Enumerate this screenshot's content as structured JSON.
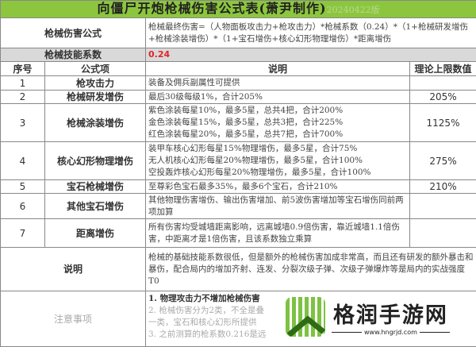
{
  "title": "向僵尸开炮枪械伤害公式表(萧尹制作)",
  "version": "20240422版",
  "formula": {
    "label": "枪械伤害公式",
    "text": "枪械最终伤害=（人物面板攻击力+枪攻击力）*枪械系数（0.24）*（1+枪械研发增伤+枪械涂装增伤）*（1+宝石增伤+核心幻形物理增伤）*距离增伤"
  },
  "coefficient": {
    "label": "枪械技能系数",
    "value": "0.24"
  },
  "headers": [
    "序号",
    "公式项",
    "说明",
    "理论上限数值"
  ],
  "rows": [
    {
      "no": "1",
      "item": "枪攻击力",
      "desc": [
        "装备及佣兵副属性可提供"
      ],
      "max": ""
    },
    {
      "no": "2",
      "item": "枪械研发增伤",
      "desc": [
        "最后30级每级1%，合计205%"
      ],
      "max": "205%"
    },
    {
      "no": "3",
      "item": "枪械涂装增伤",
      "desc": [
        "紫色涂装每星10%，最多5星，总共4把，合计200%",
        "金色涂装每星15%，最多5星，总共3把，合计225%",
        "红色涂装每星20%，最多5星，总共7把，合计700%"
      ],
      "max": "1125%"
    },
    {
      "no": "4",
      "item": "核心幻形物理增伤",
      "desc": [
        "装甲车核心幻形每星15%物理增伤，最多5星，合计75%",
        "无人机核心幻形每星20%物理增伤，最多5星，合计100%",
        "空投轰炸核心幻形每星20%物理增伤，最多5星，合计100%"
      ],
      "max": "275%"
    },
    {
      "no": "5",
      "item": "宝石枪械增伤",
      "desc": [
        "至尊彩色宝石最多35%，最多6个宝石，合计210%"
      ],
      "max": "210%"
    },
    {
      "no": "6",
      "item": "其他宝石增伤",
      "desc": [
        "其他物理伤害增伤、输出伤害增加、前5波伤害增加等宝石增伤同前两项加算"
      ],
      "max": ""
    },
    {
      "no": "7",
      "item": "距离增伤",
      "desc": [
        "所有伤害均受城墙距离影响，远离城墙0.9倍伤害，靠近城墙1.1倍伤害，中距离才是1倍伤害，且该系数独立乘算"
      ],
      "max": ""
    }
  ],
  "explain": {
    "label": "说明",
    "text": "枪械的基础技能系数很低，但是额外的枪械伤害加成非常高，而且还有研发的额外暴击和暴伤，配合局内的增加齐射、连发、分裂次级子弹、次级子弹爆炸等是局内的实战强度T0"
  },
  "notes": {
    "label": "注意事项",
    "lines": [
      "1. 物理攻击力不增加枪械伤害",
      "2. 枪械伤害分为2类，不全是叠",
      "一类，宝石和核心幻形所提供",
      "3. 之前测算的枪系数0.216是远"
    ]
  },
  "watermark": {
    "name": "格润手游网",
    "url": "www.hngrjd.com"
  },
  "colors": {
    "title_bg": "#8cc63e",
    "coef_row_bg": "#d9d9d9",
    "coef_value": "#e0242a"
  }
}
